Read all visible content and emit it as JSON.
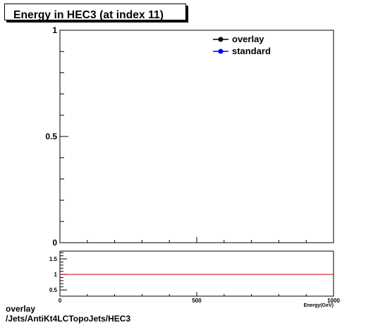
{
  "chart_data": [
    {
      "type": "line",
      "title": "Energy in HEC3 (at index 11)",
      "xlabel": "Energy(GeV)",
      "ylabel": "",
      "xlim": [
        0,
        1000
      ],
      "ylim": [
        0,
        1
      ],
      "ytick_labels": [
        "0",
        "0.5",
        "1"
      ],
      "grid": false,
      "legend_position": "top-right",
      "series": [
        {
          "name": "overlay",
          "color": "#000000",
          "marker": "filled-circle",
          "values": []
        },
        {
          "name": "standard",
          "color": "#0000ff",
          "marker": "filled-circle",
          "values": []
        }
      ]
    },
    {
      "type": "line",
      "title": "",
      "xlabel": "Energy(GeV)",
      "ylabel": "",
      "xlim": [
        0,
        1000
      ],
      "ylim": [
        0.3,
        1.75
      ],
      "xtick_labels": [
        "0",
        "500",
        "1000"
      ],
      "ytick_labels": [
        "0.5",
        "1",
        "1.5"
      ],
      "reference_line": {
        "y": 1,
        "color": "#cc0000"
      }
    }
  ],
  "footer": {
    "line1": "overlay",
    "line2": "/Jets/AntiKt4LCTopoJets/HEC3"
  }
}
